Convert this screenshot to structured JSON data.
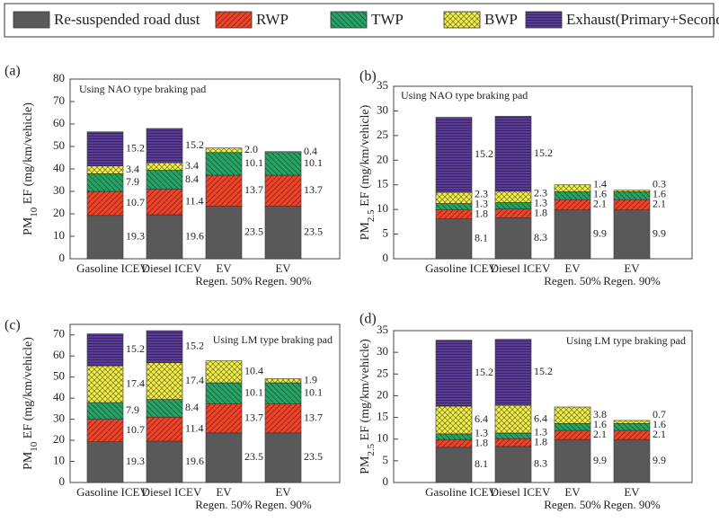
{
  "legend": [
    {
      "name": "Re-suspended road dust",
      "color": "#595959"
    },
    {
      "name": "RWP",
      "color": "#e8452c"
    },
    {
      "name": "TWP",
      "color": "#23a464"
    },
    {
      "name": "BWP",
      "color": "#f4f04a"
    },
    {
      "name": "Exhaust(Primary+Secondary)",
      "color": "#5a3c98"
    }
  ],
  "chart_data": [
    {
      "type": "stacked_bar",
      "panel_label": "(a)",
      "annotation": "Using NAO type braking pad",
      "ylabel": {
        "main": "PM",
        "sub": "10",
        "rest": " EF (mg/km/vehicle)"
      },
      "categories": [
        [
          "Gasoline ICEV"
        ],
        [
          "Diesel ICEV"
        ],
        [
          "EV",
          "Regen. 50%"
        ],
        [
          "EV",
          "Regen. 90%"
        ]
      ],
      "series": [
        {
          "values": [
            19.3,
            19.6,
            23.5,
            23.5
          ]
        },
        {
          "values": [
            10.7,
            11.4,
            13.7,
            13.7
          ]
        },
        {
          "values": [
            7.9,
            8.4,
            10.1,
            10.1
          ]
        },
        {
          "values": [
            3.4,
            3.4,
            2,
            0.4
          ],
          "value_labels": [
            "3.4",
            "3.4",
            "2.0",
            "0.4"
          ]
        },
        {
          "values": [
            15.2,
            15.2,
            null,
            null
          ]
        }
      ],
      "ylim": [
        0,
        80
      ],
      "yticks": [
        0,
        10,
        20,
        30,
        40,
        50,
        60,
        70,
        80
      ]
    },
    {
      "type": "stacked_bar",
      "panel_label": "(b)",
      "annotation": "Using NAO type braking pad",
      "ylabel": {
        "main": "PM",
        "sub": "2.5",
        "rest": " EF (mg/km/vehicle)"
      },
      "categories": [
        [
          "Gasoline ICEV"
        ],
        [
          "Diesel ICEV"
        ],
        [
          "EV",
          "Regen. 50%"
        ],
        [
          "EV",
          "Regen. 90%"
        ]
      ],
      "series": [
        {
          "values": [
            8.1,
            8.3,
            9.9,
            9.9
          ]
        },
        {
          "values": [
            1.8,
            1.8,
            2.1,
            2.1
          ]
        },
        {
          "values": [
            1.3,
            1.3,
            1.6,
            1.6
          ]
        },
        {
          "values": [
            2.3,
            2.3,
            1.4,
            0.3
          ]
        },
        {
          "values": [
            15.2,
            15.2,
            null,
            null
          ]
        }
      ],
      "ylim": [
        0,
        35
      ],
      "yticks": [
        0,
        5,
        10,
        15,
        20,
        25,
        30,
        35
      ]
    },
    {
      "type": "stacked_bar",
      "panel_label": "(c)",
      "annotation": "Using LM type braking pad",
      "ylabel": {
        "main": "PM",
        "sub": "10",
        "rest": " EF (mg/km/vehicle)"
      },
      "categories": [
        [
          "Gasoline ICEV"
        ],
        [
          "Diesel ICEV"
        ],
        [
          "EV",
          "Regen. 50%"
        ],
        [
          "EV",
          "Regen. 90%"
        ]
      ],
      "series": [
        {
          "values": [
            19.3,
            19.6,
            23.5,
            23.5
          ]
        },
        {
          "values": [
            10.7,
            11.4,
            13.7,
            13.7
          ]
        },
        {
          "values": [
            7.9,
            8.4,
            10.1,
            10.1
          ]
        },
        {
          "values": [
            17.4,
            17.4,
            10.4,
            1.9
          ]
        },
        {
          "values": [
            15.2,
            15.2,
            null,
            null
          ]
        }
      ],
      "ylim": [
        0,
        75
      ],
      "yticks": [
        0,
        10,
        20,
        30,
        40,
        50,
        60,
        70
      ]
    },
    {
      "type": "stacked_bar",
      "panel_label": "(d)",
      "annotation": "Using LM type braking pad",
      "ylabel": {
        "main": "PM",
        "sub": "2.5",
        "rest": " EF (mg/km/vehicle)"
      },
      "categories": [
        [
          "Gasoline ICEV"
        ],
        [
          "Diesel ICEV"
        ],
        [
          "EV",
          "Regen. 50%"
        ],
        [
          "EV",
          "Regen. 90%"
        ]
      ],
      "series": [
        {
          "values": [
            8.1,
            8.3,
            9.9,
            9.9
          ]
        },
        {
          "values": [
            1.8,
            1.8,
            2.1,
            2.1
          ]
        },
        {
          "values": [
            1.3,
            1.3,
            1.6,
            1.6
          ]
        },
        {
          "values": [
            6.4,
            6.4,
            3.8,
            0.7
          ]
        },
        {
          "values": [
            15.2,
            15.2,
            null,
            null
          ]
        }
      ],
      "ylim": [
        0,
        35
      ],
      "yticks": [
        0,
        5,
        10,
        15,
        20,
        25,
        30,
        35
      ]
    }
  ]
}
